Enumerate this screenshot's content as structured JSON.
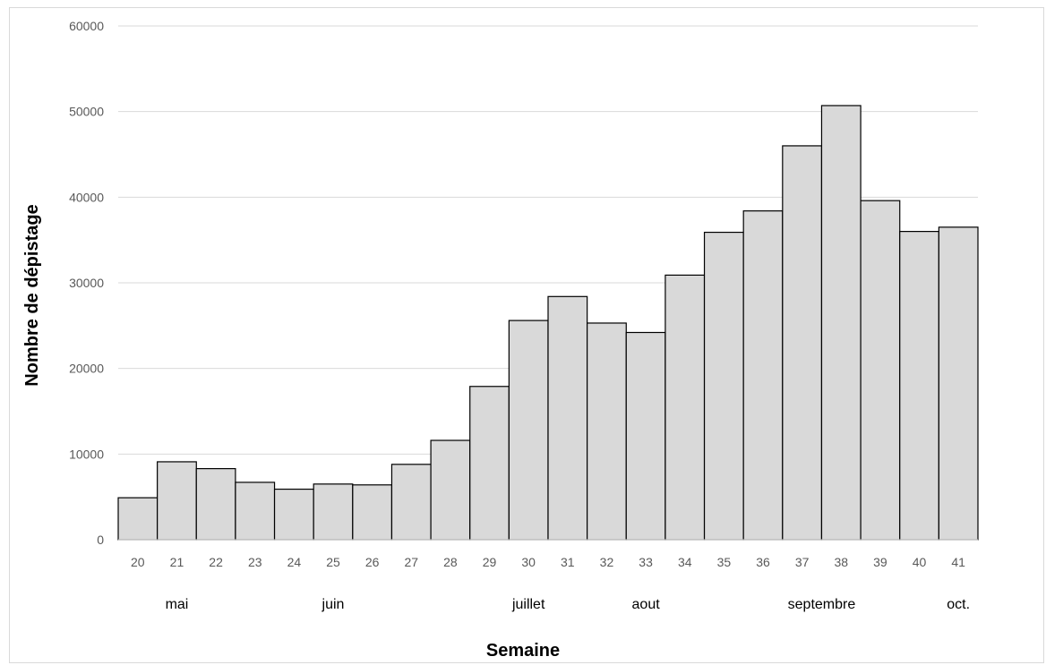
{
  "chart_data": {
    "type": "bar",
    "title": "",
    "xlabel": "Semaine",
    "ylabel": "Nombre de dépistage",
    "ylim": [
      0,
      60000
    ],
    "yticks": [
      "0",
      "10000",
      "20000",
      "30000",
      "40000",
      "50000",
      "60000"
    ],
    "grid": true,
    "legend": "none",
    "categories": [
      "20",
      "21",
      "22",
      "23",
      "24",
      "25",
      "26",
      "27",
      "28",
      "29",
      "30",
      "31",
      "32",
      "33",
      "34",
      "35",
      "36",
      "37",
      "38",
      "39",
      "40",
      "41"
    ],
    "values": [
      4900,
      9100,
      8300,
      6700,
      5900,
      6500,
      6400,
      8800,
      11600,
      17900,
      25600,
      28400,
      25300,
      24200,
      30900,
      35900,
      38400,
      46000,
      50700,
      39600,
      36000,
      36500
    ],
    "months": [
      {
        "label": "mai",
        "week": "21"
      },
      {
        "label": "juin",
        "week": "25"
      },
      {
        "label": "juillet",
        "week": "30"
      },
      {
        "label": "aout",
        "week": "33"
      },
      {
        "label": "septembre",
        "week": "37.5"
      },
      {
        "label": "oct.",
        "week": "41"
      }
    ],
    "colors": {
      "bar_fill": "#d9d9d9",
      "bar_stroke": "#000000",
      "grid": "#d9d9d9",
      "tick_text": "#595959"
    }
  }
}
